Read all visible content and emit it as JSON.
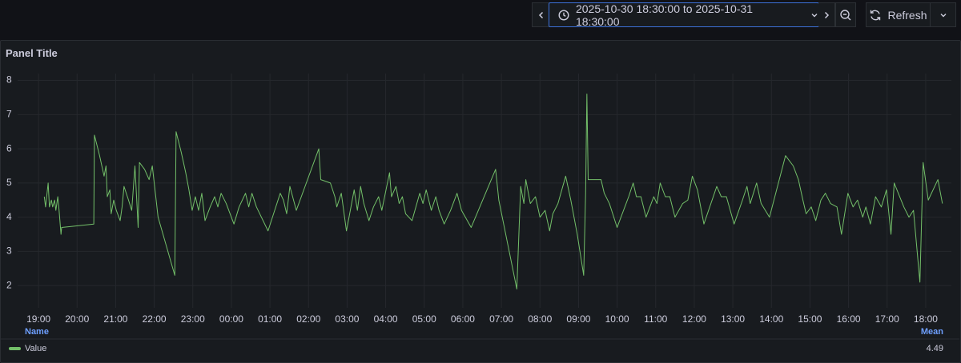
{
  "toolbar": {
    "time_range": "2025-10-30 18:30:00 to 2025-10-31 18:30:00",
    "refresh": "Refresh"
  },
  "chart_data": {
    "type": "line",
    "title": "Panel Title",
    "x": [
      "2025-10-30 19:09",
      "2025-10-30 19:11",
      "2025-10-30 19:15",
      "2025-10-30 19:17",
      "2025-10-30 19:20",
      "2025-10-30 19:22",
      "2025-10-30 19:25",
      "2025-10-30 19:27",
      "2025-10-30 19:30",
      "2025-10-30 19:32",
      "2025-10-30 19:35",
      "2025-10-30 19:36",
      "2025-10-30 20:26",
      "2025-10-30 20:27",
      "2025-10-30 20:35",
      "2025-10-30 20:42",
      "2025-10-30 20:45",
      "2025-10-30 20:47",
      "2025-10-30 20:51",
      "2025-10-30 20:53",
      "2025-10-30 20:57",
      "2025-10-30 21:01",
      "2025-10-30 21:07",
      "2025-10-30 21:10",
      "2025-10-30 21:13",
      "2025-10-30 21:20",
      "2025-10-30 21:25",
      "2025-10-30 21:30",
      "2025-10-30 21:35",
      "2025-10-30 21:37",
      "2025-10-30 21:45",
      "2025-10-30 21:52",
      "2025-10-30 21:57",
      "2025-10-30 22:06",
      "2025-10-30 22:32",
      "2025-10-30 22:34",
      "2025-10-30 22:42",
      "2025-10-30 22:49",
      "2025-10-30 22:54",
      "2025-10-30 22:59",
      "2025-10-30 23:04",
      "2025-10-30 23:09",
      "2025-10-30 23:14",
      "2025-10-30 23:19",
      "2025-10-30 23:27",
      "2025-10-30 23:34",
      "2025-10-30 23:39",
      "2025-10-30 23:44",
      "2025-10-30 23:52",
      "2025-10-31 00:04",
      "2025-10-31 00:12",
      "2025-10-31 00:22",
      "2025-10-31 00:27",
      "2025-10-31 00:32",
      "2025-10-31 00:39",
      "2025-10-31 00:57",
      "2025-10-31 01:16",
      "2025-10-31 01:21",
      "2025-10-31 01:26",
      "2025-10-31 01:31",
      "2025-10-31 01:41",
      "2025-10-31 02:16",
      "2025-10-31 02:19",
      "2025-10-31 02:34",
      "2025-10-31 02:41",
      "2025-10-31 02:44",
      "2025-10-31 02:51",
      "2025-10-31 02:59",
      "2025-10-31 03:11",
      "2025-10-31 03:16",
      "2025-10-31 03:21",
      "2025-10-31 03:26",
      "2025-10-31 03:34",
      "2025-10-31 03:41",
      "2025-10-31 03:49",
      "2025-10-31 03:54",
      "2025-10-31 04:06",
      "2025-10-31 04:09",
      "2025-10-31 04:16",
      "2025-10-31 04:21",
      "2025-10-31 04:26",
      "2025-10-31 04:31",
      "2025-10-31 04:41",
      "2025-10-31 04:53",
      "2025-10-31 04:58",
      "2025-10-31 05:03",
      "2025-10-31 05:11",
      "2025-10-31 05:18",
      "2025-10-31 05:23",
      "2025-10-31 05:31",
      "2025-10-31 05:41",
      "2025-10-31 05:51",
      "2025-10-31 05:58",
      "2025-10-31 06:13",
      "2025-10-31 06:51",
      "2025-10-31 06:56",
      "2025-10-31 07:24",
      "2025-10-31 07:30",
      "2025-10-31 07:35",
      "2025-10-31 07:38",
      "2025-10-31 07:45",
      "2025-10-31 07:53",
      "2025-10-31 08:00",
      "2025-10-31 08:08",
      "2025-10-31 08:15",
      "2025-10-31 08:20",
      "2025-10-31 08:28",
      "2025-10-31 08:40",
      "2025-10-31 08:48",
      "2025-10-31 08:58",
      "2025-10-31 09:08",
      "2025-10-31 09:11",
      "2025-10-31 09:13",
      "2025-10-31 09:15",
      "2025-10-31 09:35",
      "2025-10-31 09:40",
      "2025-10-31 09:48",
      "2025-10-31 10:00",
      "2025-10-31 10:18",
      "2025-10-31 10:25",
      "2025-10-31 10:30",
      "2025-10-31 10:37",
      "2025-10-31 10:45",
      "2025-10-31 10:57",
      "2025-10-31 11:02",
      "2025-10-31 11:07",
      "2025-10-31 11:15",
      "2025-10-31 11:22",
      "2025-10-31 11:30",
      "2025-10-31 11:42",
      "2025-10-31 11:50",
      "2025-10-31 11:57",
      "2025-10-31 12:05",
      "2025-10-31 12:15",
      "2025-10-31 12:35",
      "2025-10-31 12:42",
      "2025-10-31 12:50",
      "2025-10-31 13:02",
      "2025-10-31 13:15",
      "2025-10-31 13:22",
      "2025-10-31 13:27",
      "2025-10-31 13:37",
      "2025-10-31 13:44",
      "2025-10-31 13:57",
      "2025-10-31 14:22",
      "2025-10-31 14:34",
      "2025-10-31 14:42",
      "2025-10-31 14:49",
      "2025-10-31 14:54",
      "2025-10-31 15:02",
      "2025-10-31 15:09",
      "2025-10-31 15:17",
      "2025-10-31 15:24",
      "2025-10-31 15:32",
      "2025-10-31 15:42",
      "2025-10-31 15:49",
      "2025-10-31 15:59",
      "2025-10-31 16:07",
      "2025-10-31 16:14",
      "2025-10-31 16:22",
      "2025-10-31 16:27",
      "2025-10-31 16:34",
      "2025-10-31 16:42",
      "2025-10-31 16:51",
      "2025-10-31 16:59",
      "2025-10-31 17:06",
      "2025-10-31 17:11",
      "2025-10-31 17:26",
      "2025-10-31 17:34",
      "2025-10-31 17:41",
      "2025-10-31 17:51",
      "2025-10-31 17:56",
      "2025-10-31 18:04",
      "2025-10-31 18:19",
      "2025-10-31 18:26"
    ],
    "series": [
      {
        "name": "Value",
        "color": "#73bf69",
        "values": [
          4.6,
          4.3,
          5.0,
          4.3,
          4.5,
          4.3,
          4.5,
          4.2,
          4.6,
          4.2,
          3.5,
          3.7,
          3.8,
          6.4,
          5.8,
          5.2,
          5.5,
          4.6,
          4.8,
          4.1,
          4.5,
          4.2,
          3.9,
          4.3,
          4.9,
          4.5,
          4.2,
          5.5,
          3.7,
          5.6,
          5.4,
          5.1,
          5.5,
          4.0,
          2.3,
          6.5,
          5.9,
          5.3,
          4.8,
          4.2,
          4.6,
          4.2,
          4.7,
          3.9,
          4.3,
          4.6,
          4.3,
          4.7,
          4.4,
          3.8,
          4.3,
          4.7,
          4.3,
          4.7,
          4.3,
          3.6,
          4.7,
          4.5,
          4.1,
          4.9,
          4.2,
          6.0,
          5.1,
          5.0,
          4.6,
          4.3,
          4.7,
          3.6,
          4.8,
          4.2,
          4.9,
          4.4,
          3.9,
          4.3,
          4.6,
          4.2,
          5.3,
          4.6,
          4.9,
          4.4,
          4.6,
          4.1,
          3.9,
          4.7,
          4.4,
          4.8,
          4.2,
          4.6,
          4.2,
          3.8,
          4.2,
          4.7,
          4.2,
          3.7,
          5.4,
          4.5,
          1.9,
          4.9,
          4.4,
          5.1,
          4.4,
          4.6,
          4.0,
          4.2,
          3.6,
          4.1,
          4.4,
          5.2,
          4.5,
          3.5,
          2.3,
          4.7,
          7.6,
          5.1,
          5.1,
          4.7,
          4.4,
          3.7,
          4.6,
          5.0,
          4.6,
          4.6,
          4.0,
          4.6,
          4.4,
          5.0,
          4.6,
          4.6,
          4.0,
          4.4,
          4.5,
          5.2,
          4.8,
          3.8,
          4.9,
          4.6,
          4.6,
          3.8,
          4.5,
          4.9,
          4.4,
          5.0,
          4.4,
          4.0,
          5.8,
          5.5,
          5.1,
          4.5,
          4.1,
          4.3,
          3.9,
          4.5,
          4.7,
          4.4,
          4.3,
          3.5,
          4.7,
          4.3,
          4.5,
          4.0,
          4.3,
          3.8,
          4.6,
          4.3,
          4.8,
          3.5,
          5.0,
          4.3,
          4.0,
          4.2,
          2.1,
          5.6,
          4.5,
          5.1,
          4.4
        ]
      }
    ],
    "xlim": [
      "2025-10-30 18:30:00",
      "2025-10-31 18:30:00"
    ],
    "xticks": [
      {
        "value": "2025-10-30 19:00",
        "label": "19:00"
      },
      {
        "value": "2025-10-30 20:00",
        "label": "20:00"
      },
      {
        "value": "2025-10-30 21:00",
        "label": "21:00"
      },
      {
        "value": "2025-10-30 22:00",
        "label": "22:00"
      },
      {
        "value": "2025-10-30 23:00",
        "label": "23:00"
      },
      {
        "value": "2025-10-31 00:00",
        "label": "00:00"
      },
      {
        "value": "2025-10-31 01:00",
        "label": "01:00"
      },
      {
        "value": "2025-10-31 02:00",
        "label": "02:00"
      },
      {
        "value": "2025-10-31 03:00",
        "label": "03:00"
      },
      {
        "value": "2025-10-31 04:00",
        "label": "04:00"
      },
      {
        "value": "2025-10-31 05:00",
        "label": "05:00"
      },
      {
        "value": "2025-10-31 06:00",
        "label": "06:00"
      },
      {
        "value": "2025-10-31 07:00",
        "label": "07:00"
      },
      {
        "value": "2025-10-31 08:00",
        "label": "08:00"
      },
      {
        "value": "2025-10-31 09:00",
        "label": "09:00"
      },
      {
        "value": "2025-10-31 10:00",
        "label": "10:00"
      },
      {
        "value": "2025-10-31 11:00",
        "label": "11:00"
      },
      {
        "value": "2025-10-31 12:00",
        "label": "12:00"
      },
      {
        "value": "2025-10-31 13:00",
        "label": "13:00"
      },
      {
        "value": "2025-10-31 14:00",
        "label": "14:00"
      },
      {
        "value": "2025-10-31 15:00",
        "label": "15:00"
      },
      {
        "value": "2025-10-31 16:00",
        "label": "16:00"
      },
      {
        "value": "2025-10-31 17:00",
        "label": "17:00"
      },
      {
        "value": "2025-10-31 18:00",
        "label": "18:00"
      }
    ],
    "ylim": [
      1.35,
      8.2
    ],
    "yticks": [
      2,
      3,
      4,
      5,
      6,
      7,
      8
    ],
    "grid": true,
    "legend": {
      "name_header": "Name",
      "calc_header": "Mean",
      "mean": 4.49
    }
  }
}
